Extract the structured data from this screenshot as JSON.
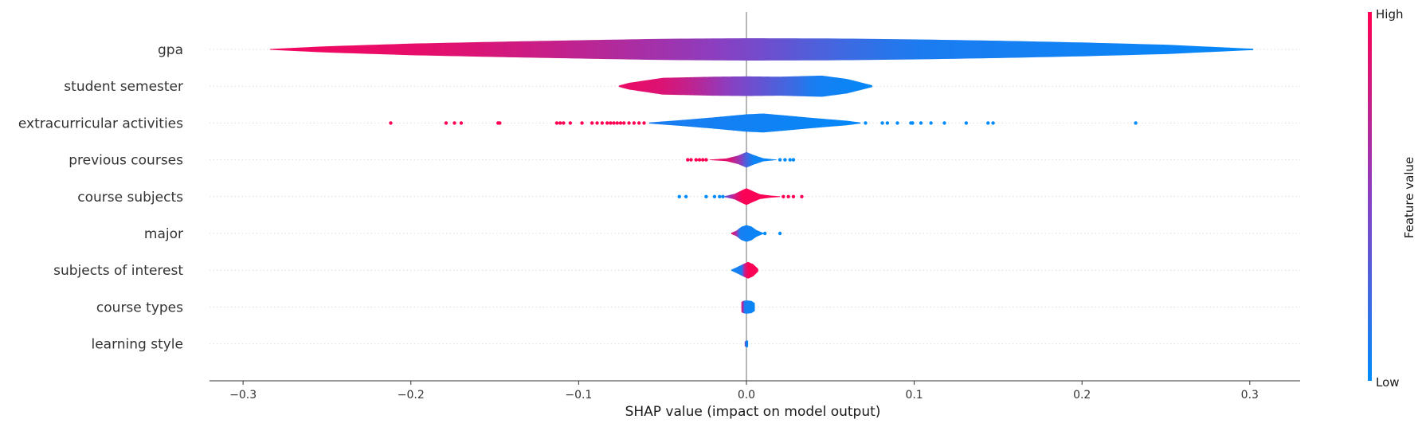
{
  "chart_data": {
    "type": "violin",
    "xlabel": "SHAP value (impact on model output)",
    "xlim": [
      -0.32,
      0.33
    ],
    "xticks": [
      -0.3,
      -0.2,
      -0.1,
      0.0,
      0.1,
      0.2,
      0.3
    ],
    "xtick_labels": [
      "−0.3",
      "−0.2",
      "−0.1",
      "0.0",
      "0.1",
      "0.2",
      "0.3"
    ],
    "colors": {
      "high": "#ff0052",
      "mid": "#8a3fc2",
      "low": "#008bfb",
      "zero_line": "#999999",
      "grid": "#dddddd"
    },
    "colorbar": {
      "label": "Feature value",
      "high_label": "High",
      "low_label": "Low"
    },
    "features": [
      {
        "name": "gpa",
        "min": -0.284,
        "max": 0.302,
        "width": [
          [
            -0.284,
            0.04
          ],
          [
            -0.25,
            0.28
          ],
          [
            -0.2,
            0.52
          ],
          [
            -0.15,
            0.68
          ],
          [
            -0.1,
            0.82
          ],
          [
            -0.05,
            0.95
          ],
          [
            0.0,
            1.0
          ],
          [
            0.05,
            0.98
          ],
          [
            0.1,
            0.9
          ],
          [
            0.15,
            0.78
          ],
          [
            0.2,
            0.62
          ],
          [
            0.25,
            0.42
          ],
          [
            0.302,
            0.06
          ]
        ],
        "color": [
          [
            -0.284,
            0.95
          ],
          [
            -0.18,
            0.88
          ],
          [
            -0.1,
            0.72
          ],
          [
            -0.05,
            0.6
          ],
          [
            0.0,
            0.45
          ],
          [
            0.05,
            0.25
          ],
          [
            0.1,
            0.1
          ],
          [
            0.302,
            0.02
          ]
        ],
        "points": []
      },
      {
        "name": "student semester",
        "min": -0.076,
        "max": 0.075,
        "width": [
          [
            -0.076,
            0.06
          ],
          [
            -0.07,
            0.3
          ],
          [
            -0.05,
            0.75
          ],
          [
            -0.02,
            0.85
          ],
          [
            0.0,
            0.88
          ],
          [
            0.02,
            0.85
          ],
          [
            0.045,
            0.95
          ],
          [
            0.06,
            0.65
          ],
          [
            0.075,
            0.08
          ]
        ],
        "color": [
          [
            -0.076,
            0.92
          ],
          [
            -0.05,
            0.85
          ],
          [
            -0.03,
            0.7
          ],
          [
            -0.01,
            0.5
          ],
          [
            0.01,
            0.35
          ],
          [
            0.03,
            0.2
          ],
          [
            0.04,
            0.08
          ],
          [
            0.075,
            0.02
          ]
        ],
        "points": []
      },
      {
        "name": "extracurricular activities",
        "min": -0.058,
        "max": 0.068,
        "width": [
          [
            -0.058,
            0.05
          ],
          [
            -0.04,
            0.25
          ],
          [
            -0.02,
            0.5
          ],
          [
            0.0,
            0.78
          ],
          [
            0.01,
            0.85
          ],
          [
            0.02,
            0.72
          ],
          [
            0.04,
            0.45
          ],
          [
            0.06,
            0.2
          ],
          [
            0.068,
            0.05
          ]
        ],
        "color": [
          [
            -0.058,
            0.1
          ],
          [
            0.068,
            0.02
          ]
        ],
        "points": [
          {
            "x": -0.212,
            "c": 1
          },
          {
            "x": -0.179,
            "c": 1
          },
          {
            "x": -0.174,
            "c": 1
          },
          {
            "x": -0.17,
            "c": 1
          },
          {
            "x": -0.148,
            "c": 1
          },
          {
            "x": -0.147,
            "c": 1
          },
          {
            "x": -0.113,
            "c": 1
          },
          {
            "x": -0.111,
            "c": 1
          },
          {
            "x": -0.109,
            "c": 1
          },
          {
            "x": -0.105,
            "c": 1
          },
          {
            "x": -0.098,
            "c": 1
          },
          {
            "x": -0.092,
            "c": 1
          },
          {
            "x": -0.089,
            "c": 1
          },
          {
            "x": -0.086,
            "c": 1
          },
          {
            "x": -0.083,
            "c": 1
          },
          {
            "x": -0.081,
            "c": 1
          },
          {
            "x": -0.079,
            "c": 1
          },
          {
            "x": -0.077,
            "c": 1
          },
          {
            "x": -0.075,
            "c": 1
          },
          {
            "x": -0.073,
            "c": 1
          },
          {
            "x": -0.07,
            "c": 1
          },
          {
            "x": -0.067,
            "c": 1
          },
          {
            "x": -0.064,
            "c": 1
          },
          {
            "x": -0.061,
            "c": 1
          },
          {
            "x": 0.071,
            "c": 0
          },
          {
            "x": 0.081,
            "c": 0
          },
          {
            "x": 0.084,
            "c": 0
          },
          {
            "x": 0.09,
            "c": 0
          },
          {
            "x": 0.098,
            "c": 0
          },
          {
            "x": 0.099,
            "c": 0
          },
          {
            "x": 0.104,
            "c": 0
          },
          {
            "x": 0.11,
            "c": 0
          },
          {
            "x": 0.118,
            "c": 0
          },
          {
            "x": 0.131,
            "c": 0
          },
          {
            "x": 0.144,
            "c": 0
          },
          {
            "x": 0.147,
            "c": 0
          },
          {
            "x": 0.232,
            "c": 0
          }
        ]
      },
      {
        "name": "previous courses",
        "min": -0.022,
        "max": 0.018,
        "width": [
          [
            -0.022,
            0.02
          ],
          [
            -0.012,
            0.12
          ],
          [
            -0.005,
            0.38
          ],
          [
            0.0,
            0.7
          ],
          [
            0.004,
            0.45
          ],
          [
            0.01,
            0.14
          ],
          [
            0.018,
            0.02
          ]
        ],
        "color": [
          [
            -0.022,
            0.95
          ],
          [
            -0.01,
            0.85
          ],
          [
            -0.004,
            0.55
          ],
          [
            0.0,
            0.25
          ],
          [
            0.004,
            0.05
          ],
          [
            0.018,
            0.02
          ]
        ],
        "points": [
          {
            "x": -0.035,
            "c": 1
          },
          {
            "x": -0.033,
            "c": 1
          },
          {
            "x": -0.03,
            "c": 1
          },
          {
            "x": -0.028,
            "c": 1
          },
          {
            "x": -0.026,
            "c": 1
          },
          {
            "x": -0.024,
            "c": 1
          },
          {
            "x": 0.02,
            "c": 0
          },
          {
            "x": 0.023,
            "c": 0
          },
          {
            "x": 0.026,
            "c": 0
          },
          {
            "x": 0.028,
            "c": 0
          }
        ]
      },
      {
        "name": "course subjects",
        "min": -0.013,
        "max": 0.02,
        "width": [
          [
            -0.013,
            0.05
          ],
          [
            -0.007,
            0.25
          ],
          [
            -0.002,
            0.62
          ],
          [
            0.0,
            0.75
          ],
          [
            0.003,
            0.55
          ],
          [
            0.008,
            0.22
          ],
          [
            0.014,
            0.1
          ],
          [
            0.02,
            0.03
          ]
        ],
        "color": [
          [
            -0.013,
            0.35
          ],
          [
            -0.006,
            0.85
          ],
          [
            -0.002,
            0.98
          ],
          [
            0.02,
            0.98
          ]
        ],
        "points": [
          {
            "x": -0.04,
            "c": 0
          },
          {
            "x": -0.036,
            "c": 0
          },
          {
            "x": -0.024,
            "c": 0
          },
          {
            "x": -0.019,
            "c": 0
          },
          {
            "x": -0.016,
            "c": 0
          },
          {
            "x": -0.014,
            "c": 0
          },
          {
            "x": 0.022,
            "c": 1
          },
          {
            "x": 0.025,
            "c": 1
          },
          {
            "x": 0.028,
            "c": 1
          },
          {
            "x": 0.033,
            "c": 1
          }
        ]
      },
      {
        "name": "major",
        "min": -0.009,
        "max": 0.01,
        "width": [
          [
            -0.009,
            0.05
          ],
          [
            -0.006,
            0.25
          ],
          [
            -0.003,
            0.6
          ],
          [
            0.0,
            0.75
          ],
          [
            0.003,
            0.62
          ],
          [
            0.006,
            0.3
          ],
          [
            0.01,
            0.05
          ]
        ],
        "color": [
          [
            -0.009,
            0.95
          ],
          [
            -0.006,
            0.6
          ],
          [
            -0.004,
            0.08
          ],
          [
            0.01,
            0.02
          ]
        ],
        "points": [
          {
            "x": 0.011,
            "c": 0
          },
          {
            "x": 0.02,
            "c": 0
          }
        ]
      },
      {
        "name": "subjects of interest",
        "min": -0.009,
        "max": 0.007,
        "width": [
          [
            -0.009,
            0.05
          ],
          [
            -0.006,
            0.25
          ],
          [
            -0.002,
            0.55
          ],
          [
            0.001,
            0.75
          ],
          [
            0.004,
            0.55
          ],
          [
            0.007,
            0.12
          ]
        ],
        "color": [
          [
            -0.009,
            0.05
          ],
          [
            -0.003,
            0.1
          ],
          [
            -0.001,
            0.75
          ],
          [
            0.001,
            0.98
          ],
          [
            0.007,
            0.98
          ]
        ],
        "points": []
      },
      {
        "name": "course types",
        "min": -0.003,
        "max": 0.005,
        "width": [
          [
            -0.003,
            0.45
          ],
          [
            -0.002,
            0.55
          ],
          [
            0.0,
            0.6
          ],
          [
            0.003,
            0.55
          ],
          [
            0.005,
            0.35
          ]
        ],
        "color": [
          [
            -0.003,
            0.9
          ],
          [
            -0.002,
            0.55
          ],
          [
            -0.001,
            0.08
          ],
          [
            0.005,
            0.02
          ]
        ],
        "points": []
      },
      {
        "name": "learning style",
        "min": -0.001,
        "max": 0.001,
        "width": [
          [
            -0.001,
            0.2
          ],
          [
            0.0,
            0.32
          ],
          [
            0.001,
            0.28
          ]
        ],
        "color": [
          [
            -0.001,
            0.5
          ],
          [
            0.0,
            0.05
          ],
          [
            0.001,
            0.02
          ]
        ],
        "points": []
      }
    ]
  }
}
